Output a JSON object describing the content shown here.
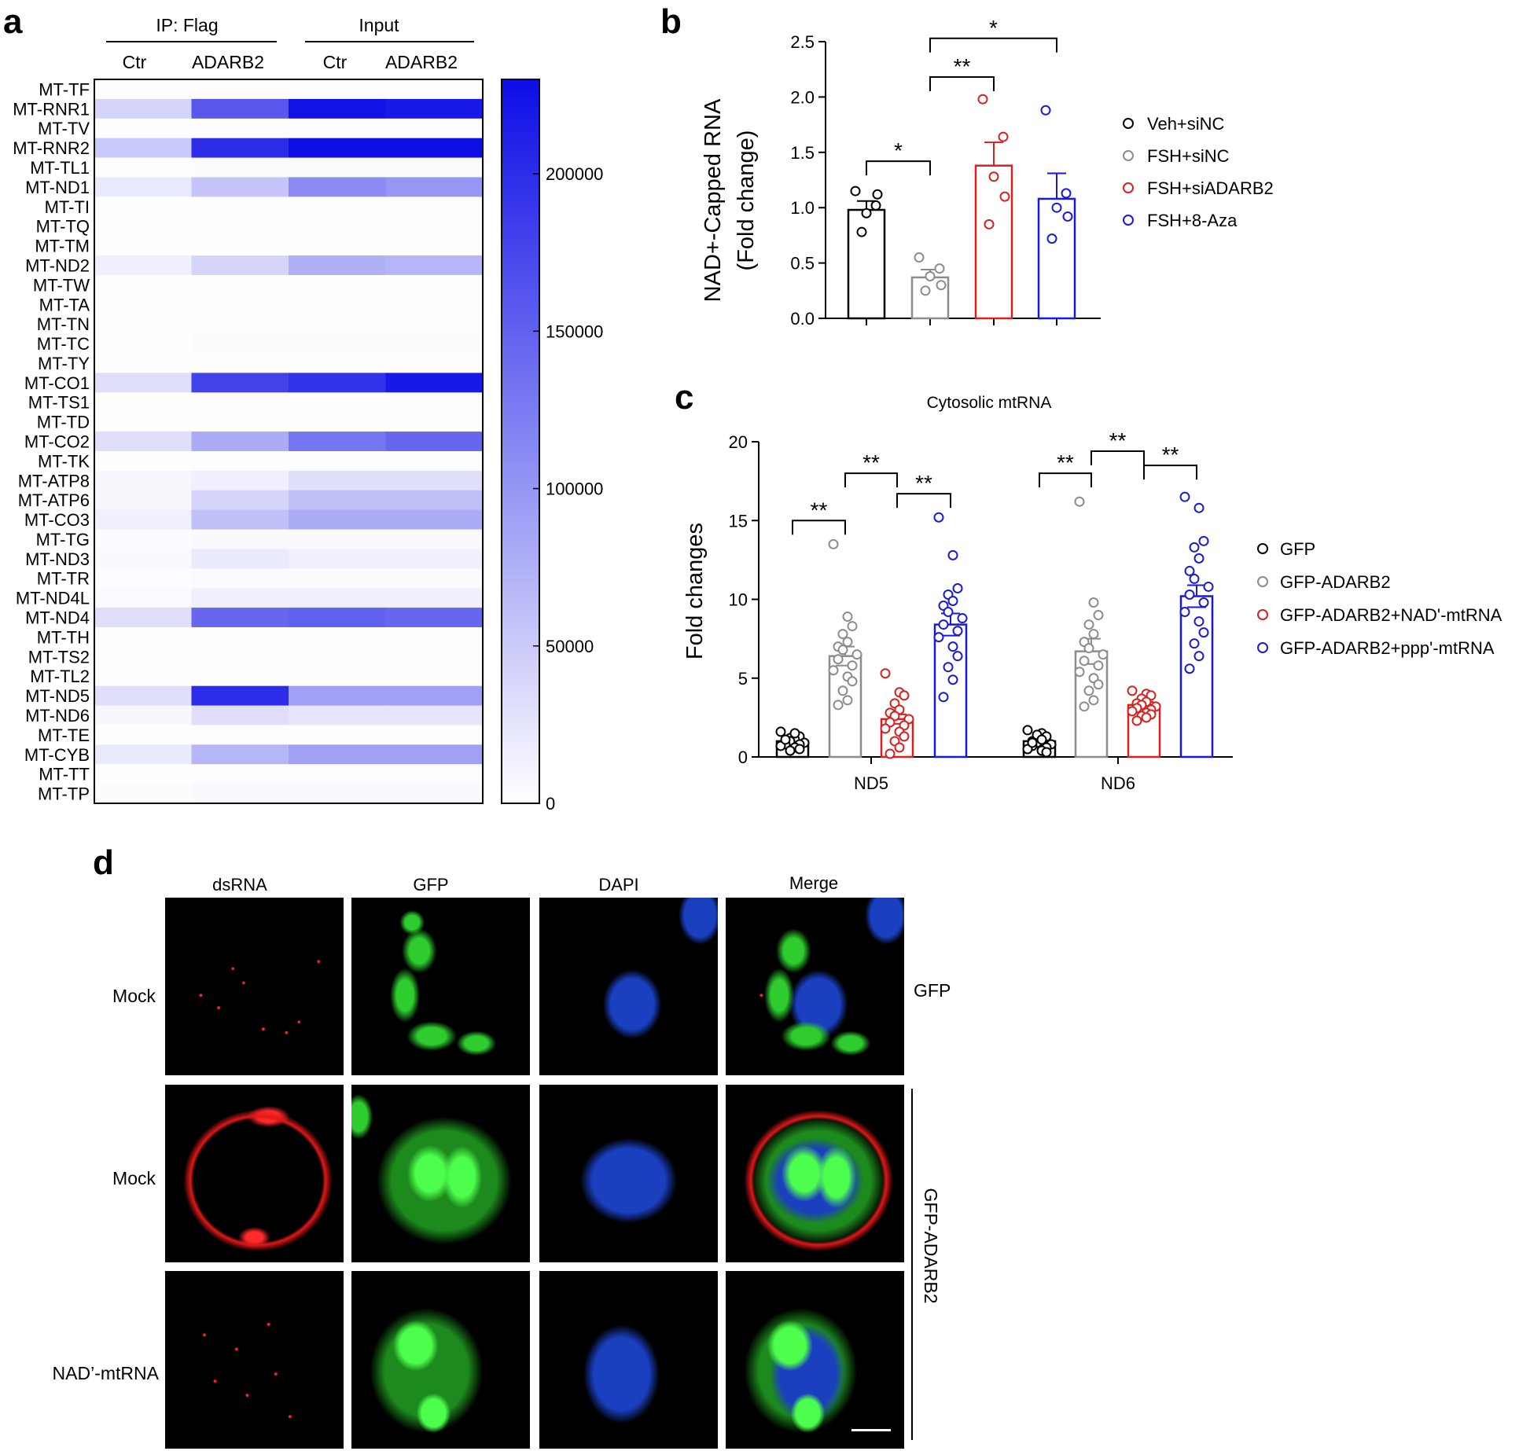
{
  "panel_letters": {
    "a": "a",
    "b": "b",
    "c": "c",
    "d": "d"
  },
  "colors": {
    "black": "#000000",
    "gray": "#8c8c8c",
    "red": "#d62121",
    "blue": "#1a1ad6",
    "heat_max": "#0d0de6",
    "heat_min": "#ffffff"
  },
  "chart_data": [
    {
      "panel": "a",
      "type": "heatmap",
      "header_groups": [
        "IP: Flag",
        "Input"
      ],
      "columns": [
        "Ctr",
        "ADARB2",
        "Ctr",
        "ADARB2"
      ],
      "rows": [
        "MT-TF",
        "MT-RNR1",
        "MT-TV",
        "MT-RNR2",
        "MT-TL1",
        "MT-ND1",
        "MT-TI",
        "MT-TQ",
        "MT-TM",
        "MT-ND2",
        "MT-TW",
        "MT-TA",
        "MT-TN",
        "MT-TC",
        "MT-TY",
        "MT-CO1",
        "MT-TS1",
        "MT-TD",
        "MT-CO2",
        "MT-TK",
        "MT-ATP8",
        "MT-ATP6",
        "MT-CO3",
        "MT-TG",
        "MT-ND3",
        "MT-TR",
        "MT-ND4L",
        "MT-ND4",
        "MT-TH",
        "MT-TS2",
        "MT-TL2",
        "MT-ND5",
        "MT-ND6",
        "MT-TE",
        "MT-CYB",
        "MT-TT",
        "MT-TP"
      ],
      "values": [
        [
          1000,
          1500,
          1500,
          1500
        ],
        [
          40000,
          160000,
          225000,
          220000
        ],
        [
          1000,
          1000,
          1000,
          1000
        ],
        [
          50000,
          200000,
          230000,
          235000
        ],
        [
          2000,
          3000,
          3000,
          3000
        ],
        [
          20000,
          55000,
          110000,
          100000
        ],
        [
          1000,
          1000,
          1000,
          1000
        ],
        [
          1000,
          1000,
          1000,
          1000
        ],
        [
          1000,
          1000,
          1000,
          1000
        ],
        [
          15000,
          40000,
          75000,
          70000
        ],
        [
          1000,
          1000,
          1000,
          1000
        ],
        [
          1000,
          1000,
          1000,
          1000
        ],
        [
          1000,
          1000,
          1000,
          1000
        ],
        [
          1000,
          3000,
          3000,
          3000
        ],
        [
          1000,
          1000,
          1000,
          1000
        ],
        [
          30000,
          180000,
          195000,
          220000
        ],
        [
          1000,
          2000,
          2000,
          2000
        ],
        [
          1000,
          1000,
          1000,
          1000
        ],
        [
          30000,
          80000,
          130000,
          145000
        ],
        [
          1000,
          2000,
          2000,
          2000
        ],
        [
          8000,
          15000,
          30000,
          30000
        ],
        [
          8000,
          40000,
          60000,
          60000
        ],
        [
          15000,
          60000,
          80000,
          80000
        ],
        [
          3000,
          6000,
          6000,
          6000
        ],
        [
          5000,
          20000,
          15000,
          15000
        ],
        [
          2000,
          4000,
          4000,
          4000
        ],
        [
          4000,
          15000,
          15000,
          15000
        ],
        [
          30000,
          145000,
          150000,
          145000
        ],
        [
          1000,
          2000,
          2000,
          2000
        ],
        [
          1000,
          2000,
          2000,
          2000
        ],
        [
          1000,
          1000,
          1000,
          1000
        ],
        [
          30000,
          200000,
          90000,
          90000
        ],
        [
          8000,
          30000,
          25000,
          25000
        ],
        [
          1000,
          2000,
          2000,
          2000
        ],
        [
          20000,
          70000,
          90000,
          90000
        ],
        [
          1000,
          2000,
          2000,
          2000
        ],
        [
          3000,
          5000,
          5000,
          5000
        ]
      ],
      "scale_ticks": [
        0,
        50000,
        100000,
        150000,
        200000
      ],
      "scale_range": [
        0,
        230000
      ]
    },
    {
      "panel": "b",
      "type": "bar",
      "ylabel_line1": "NAD+-Capped RNA",
      "ylabel_line2": "(Fold change)",
      "ylim": [
        0,
        2.5
      ],
      "yticks": [
        "0.0",
        "0.5",
        "1.0",
        "1.5",
        "2.0",
        "2.5"
      ],
      "series": [
        {
          "name": "Veh+siNC",
          "color": "#000000",
          "mean": 0.98,
          "sem": 0.08,
          "points": [
            1.15,
            1.02,
            0.95,
            1.12,
            0.78
          ]
        },
        {
          "name": "FSH+siNC",
          "color": "#8c8c8c",
          "mean": 0.37,
          "sem": 0.07,
          "points": [
            0.55,
            0.45,
            0.38,
            0.3,
            0.25
          ]
        },
        {
          "name": "FSH+siADARB2",
          "color": "#d62121",
          "mean": 1.38,
          "sem": 0.21,
          "points": [
            1.98,
            1.64,
            1.28,
            1.1,
            0.85
          ]
        },
        {
          "name": "FSH+8-Aza",
          "color": "#1a1ad6",
          "mean": 1.08,
          "sem": 0.23,
          "points": [
            1.88,
            1.13,
            1.0,
            0.92,
            0.72
          ]
        }
      ],
      "significance": [
        {
          "from": 0,
          "to": 1,
          "label": "*"
        },
        {
          "from": 1,
          "to": 2,
          "label": "**"
        },
        {
          "from": 1,
          "to": 3,
          "label": "*"
        }
      ]
    },
    {
      "panel": "c",
      "type": "bar",
      "title": "Cytosolic mtRNA",
      "ylabel": "Fold changes",
      "ylim": [
        0,
        20
      ],
      "yticks": [
        "0",
        "5",
        "10",
        "15",
        "20"
      ],
      "categories": [
        "ND5",
        "ND6"
      ],
      "series": [
        {
          "name": "GFP",
          "color": "#000000",
          "means": [
            1.0,
            1.0
          ],
          "sems": [
            0.1,
            0.1
          ],
          "points": [
            [
              1.6,
              1.4,
              1.3,
              1.2,
              1.1,
              1.0,
              1.0,
              0.9,
              0.8,
              0.8,
              0.7,
              0.6,
              0.5,
              0.4,
              1.5,
              1.1
            ],
            [
              1.7,
              1.5,
              1.3,
              1.2,
              1.0,
              1.0,
              0.9,
              0.8,
              0.7,
              0.6,
              0.5,
              0.4,
              0.3,
              1.4,
              1.1,
              0.9
            ]
          ]
        },
        {
          "name": "GFP-ADARB2",
          "color": "#8c8c8c",
          "means": [
            6.4,
            6.7
          ],
          "sems": [
            0.6,
            0.8
          ],
          "points": [
            [
              13.5,
              8.9,
              8.3,
              7.8,
              7.3,
              7.0,
              6.8,
              6.5,
              6.2,
              5.8,
              5.5,
              5.1,
              4.8,
              4.2,
              3.6,
              3.3
            ],
            [
              16.2,
              9.8,
              9.0,
              8.4,
              7.8,
              7.3,
              6.9,
              6.5,
              6.1,
              5.8,
              5.4,
              5.0,
              4.6,
              4.2,
              3.6,
              3.2
            ]
          ]
        },
        {
          "name": "GFP-ADARB2+NAD'-mtRNA",
          "color": "#d62121",
          "means": [
            2.4,
            3.3
          ],
          "sems": [
            0.3,
            0.2
          ],
          "points": [
            [
              5.3,
              4.1,
              3.9,
              3.4,
              3.0,
              2.8,
              2.6,
              2.4,
              2.2,
              2.0,
              1.8,
              1.6,
              1.3,
              1.0,
              0.6,
              0.2
            ],
            [
              4.2,
              4.0,
              3.9,
              3.7,
              3.5,
              3.4,
              3.3,
              3.2,
              3.1,
              3.0,
              2.9,
              2.8,
              2.7,
              2.6,
              2.5,
              2.3
            ]
          ]
        },
        {
          "name": "GFP-ADARB2+ppp'-mtRNA",
          "color": "#1a1ad6",
          "means": [
            8.4,
            10.2
          ],
          "sems": [
            0.7,
            0.7
          ],
          "points": [
            [
              15.2,
              12.8,
              10.7,
              10.3,
              9.9,
              9.6,
              9.2,
              8.8,
              8.4,
              8.0,
              7.6,
              7.0,
              6.4,
              5.7,
              4.9,
              3.8
            ],
            [
              16.5,
              15.8,
              13.7,
              13.3,
              12.6,
              11.8,
              11.3,
              10.8,
              10.3,
              9.8,
              9.2,
              8.6,
              7.9,
              7.2,
              6.4,
              5.6
            ]
          ]
        }
      ],
      "significance": [
        {
          "category": 0,
          "from": 0,
          "to": 1,
          "label": "**"
        },
        {
          "category": 0,
          "from": 1,
          "to": 2,
          "label": "**"
        },
        {
          "category": 0,
          "from": 2,
          "to": 3,
          "label": "**"
        },
        {
          "category": 1,
          "from": 0,
          "to": 1,
          "label": "**"
        },
        {
          "category": 1,
          "from": 1,
          "to": 2,
          "label": "**"
        },
        {
          "category": 1,
          "from": 2,
          "to": 3,
          "label": "**"
        }
      ]
    }
  ],
  "panel_d": {
    "columns": [
      "dsRNA",
      "GFP",
      "DAPI",
      "Merge"
    ],
    "rows": [
      "Mock",
      "Mock",
      "NAD’-mtRNA"
    ],
    "side_labels": [
      "GFP",
      "GFP-ADARB2"
    ]
  }
}
